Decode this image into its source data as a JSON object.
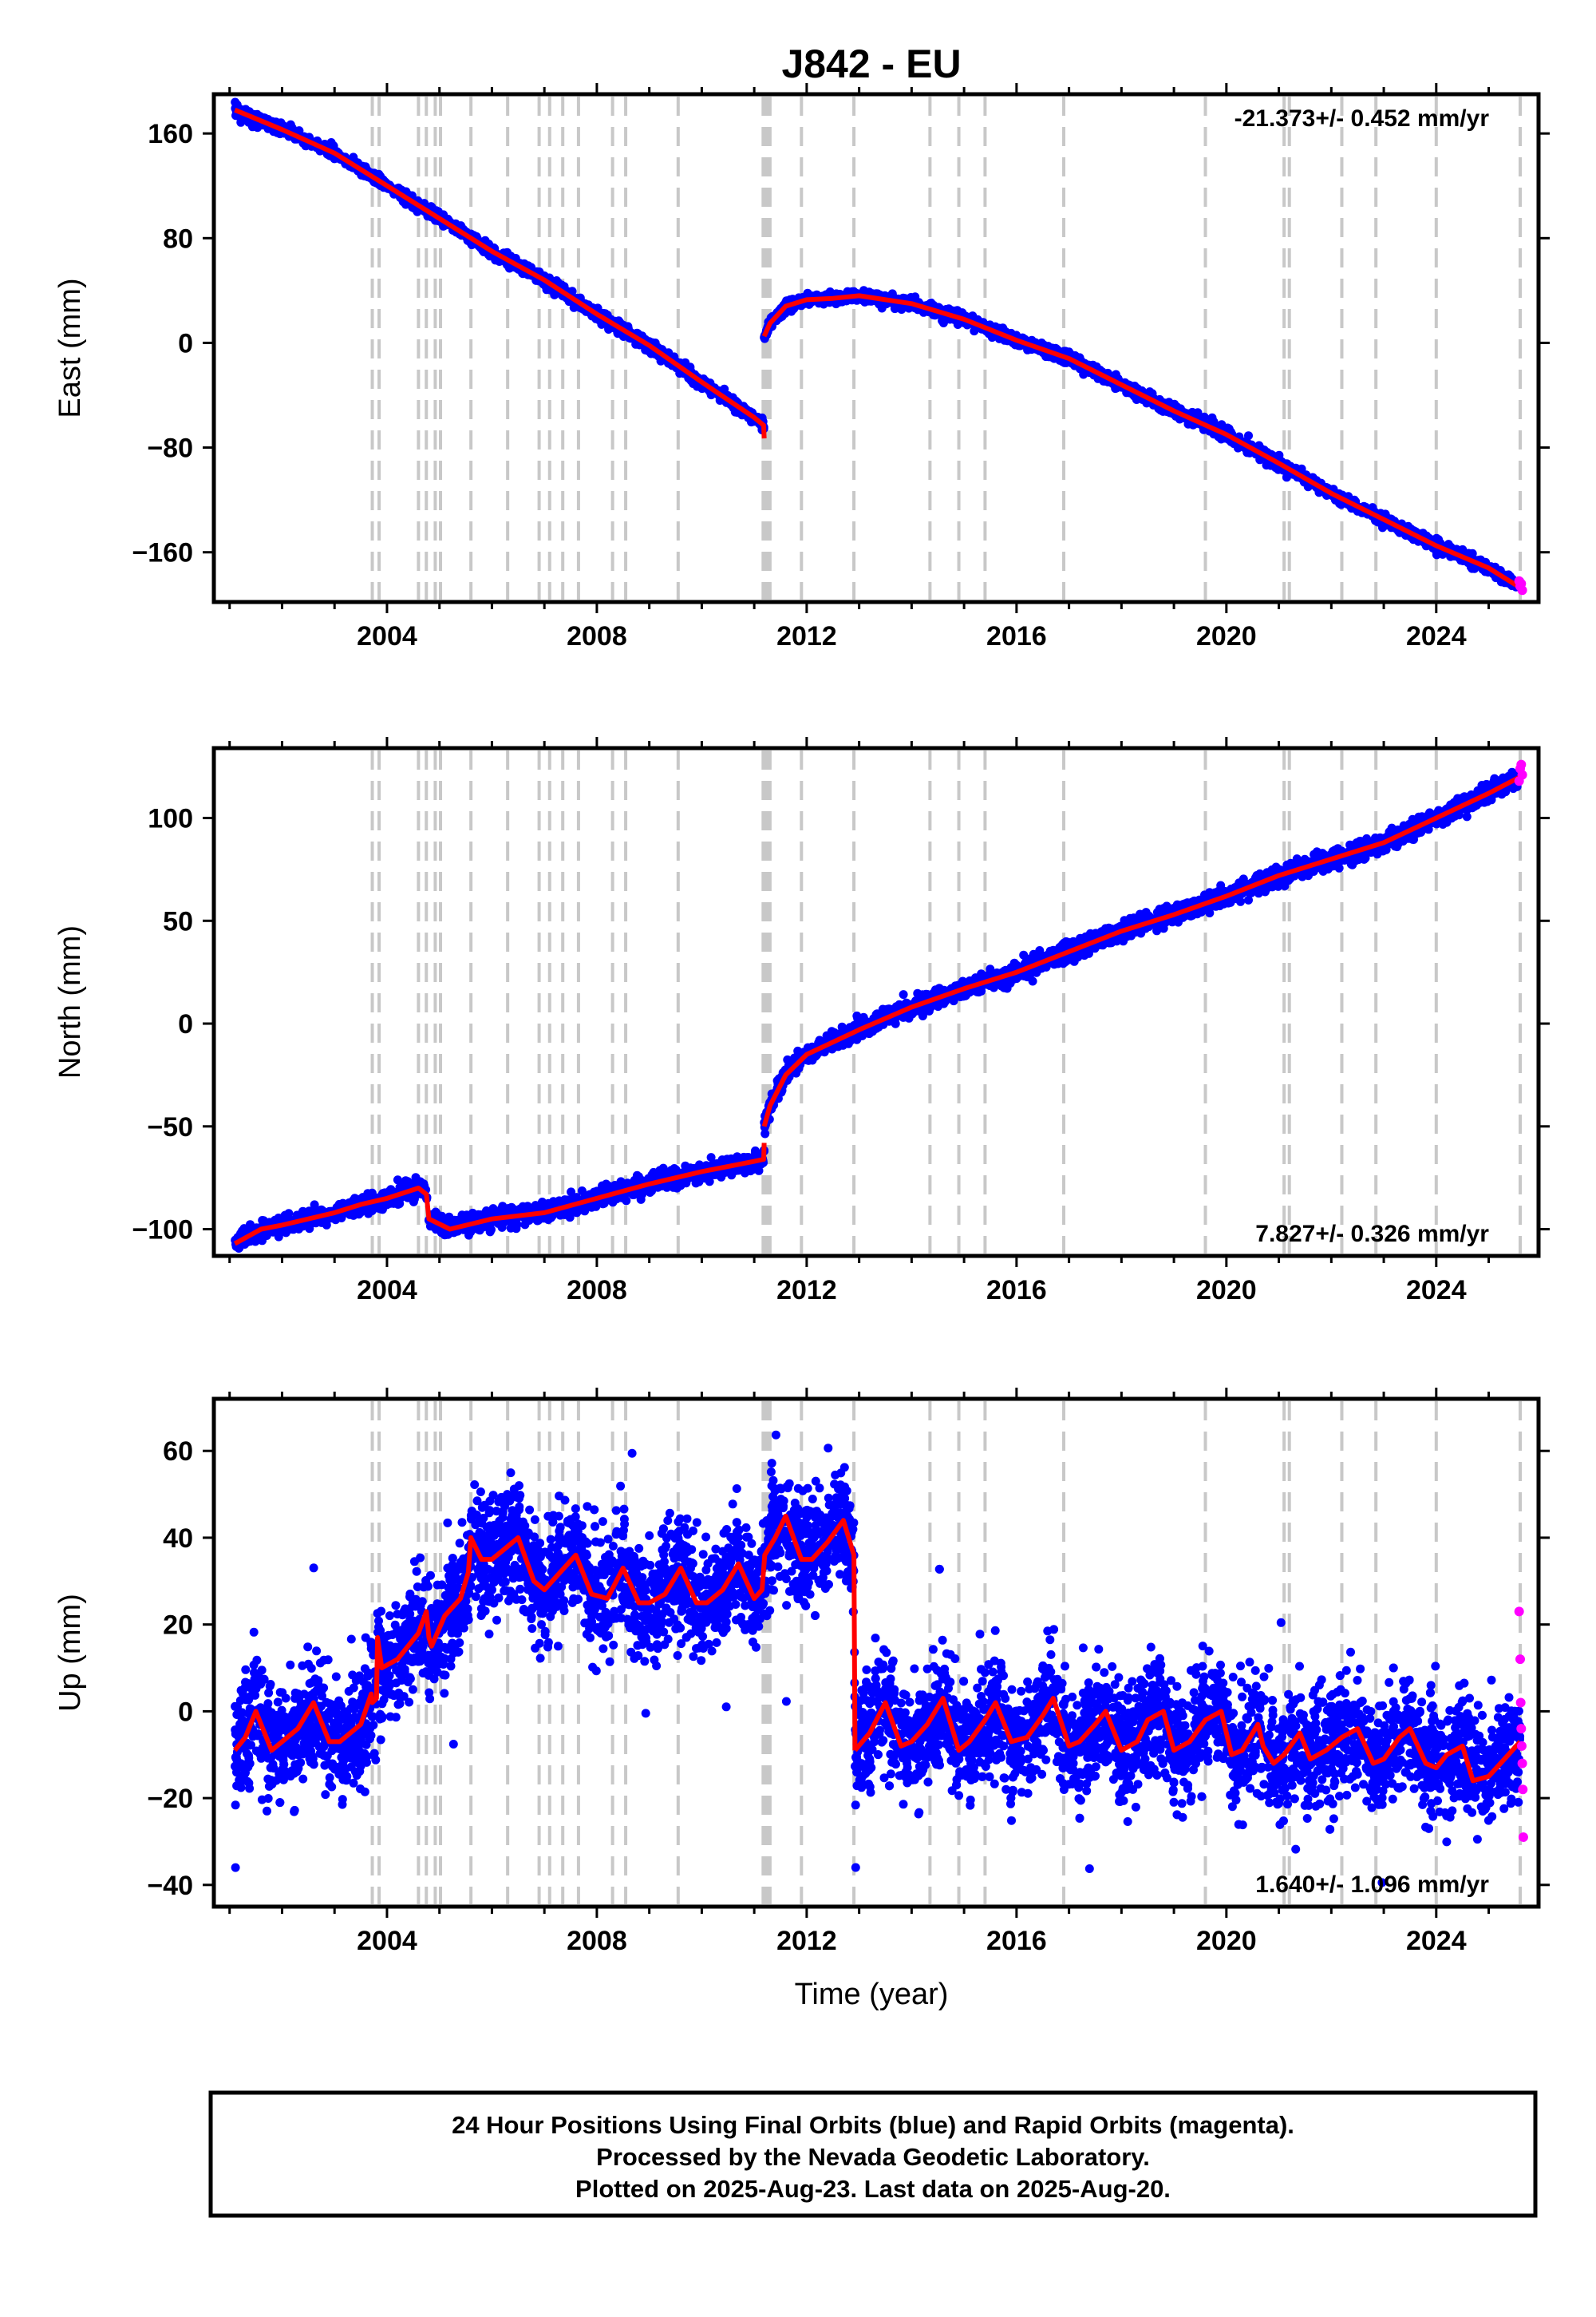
{
  "colors": {
    "final_orbits": "#0000ff",
    "rapid_orbits": "#ff00ff",
    "model_line": "#ff0000",
    "event_lines": "#c8c8c8",
    "frame": "#000000"
  },
  "chart_data": [
    {
      "type": "scatter",
      "panel": "east",
      "title": "J842 - EU",
      "ylabel": "East (mm)",
      "xlabel": "",
      "xlim": [
        2000.7,
        2025.95
      ],
      "ylim": [
        -198,
        190
      ],
      "yticks": [
        160,
        80,
        0,
        -80,
        -160
      ],
      "ytick_labels": [
        "160",
        "80",
        "0",
        "−80",
        "−160"
      ],
      "xticks": [
        2004,
        2008,
        2012,
        2016,
        2020,
        2024
      ],
      "rate_label": "-21.373+/- 0.452 mm/yr",
      "rate_position": "top-right",
      "series": [
        {
          "role": "model",
          "segments": [
            [
              [
                2001.1,
                178
              ],
              [
                2002.0,
                163
              ],
              [
                2003.0,
                145
              ],
              [
                2004.0,
                120
              ],
              [
                2005.0,
                95
              ],
              [
                2006.0,
                70
              ],
              [
                2007.0,
                48
              ],
              [
                2008.0,
                22
              ],
              [
                2009.0,
                -2
              ],
              [
                2010.0,
                -30
              ],
              [
                2011.0,
                -57
              ],
              [
                2011.18,
                -63
              ],
              [
                2011.19,
                -73
              ]
            ],
            [
              [
                2011.19,
                5
              ],
              [
                2011.3,
                15
              ],
              [
                2011.6,
                28
              ],
              [
                2012.0,
                33
              ],
              [
                2012.5,
                34
              ],
              [
                2013.0,
                36
              ],
              [
                2014.0,
                30
              ],
              [
                2015.0,
                18
              ],
              [
                2016.0,
                2
              ],
              [
                2017.0,
                -12
              ],
              [
                2018.0,
                -32
              ],
              [
                2019.0,
                -52
              ],
              [
                2020.0,
                -70
              ],
              [
                2021.0,
                -92
              ],
              [
                2022.0,
                -115
              ],
              [
                2023.0,
                -135
              ],
              [
                2024.0,
                -155
              ],
              [
                2025.0,
                -172
              ],
              [
                2025.6,
                -187
              ]
            ]
          ]
        },
        {
          "role": "rapid",
          "points": [
            [
              2025.58,
              -182
            ],
            [
              2025.6,
              -186
            ],
            [
              2025.62,
              -184
            ],
            [
              2025.64,
              -189
            ]
          ]
        }
      ]
    },
    {
      "type": "scatter",
      "panel": "north",
      "title": "",
      "ylabel": "North (mm)",
      "xlabel": "",
      "xlim": [
        2000.7,
        2025.95
      ],
      "ylim": [
        -113,
        134
      ],
      "yticks": [
        100,
        50,
        0,
        -50,
        -100
      ],
      "ytick_labels": [
        "100",
        "50",
        "0",
        "−50",
        "−100"
      ],
      "xticks": [
        2004,
        2008,
        2012,
        2016,
        2020,
        2024
      ],
      "rate_label": "7.827+/- 0.326 mm/yr",
      "rate_position": "bottom-right",
      "series": [
        {
          "role": "model",
          "segments": [
            [
              [
                2001.1,
                -107
              ],
              [
                2001.6,
                -100
              ],
              [
                2002.0,
                -98
              ],
              [
                2003.0,
                -92
              ],
              [
                2003.5,
                -88
              ],
              [
                2004.0,
                -85
              ],
              [
                2004.6,
                -80
              ],
              [
                2004.75,
                -83
              ],
              [
                2004.8,
                -95
              ],
              [
                2005.2,
                -100
              ],
              [
                2006.0,
                -95
              ],
              [
                2007.0,
                -92
              ],
              [
                2008.0,
                -85
              ],
              [
                2009.0,
                -78
              ],
              [
                2010.0,
                -72
              ],
              [
                2011.0,
                -67
              ],
              [
                2011.18,
                -66
              ],
              [
                2011.19,
                -58
              ]
            ],
            [
              [
                2011.19,
                -50
              ],
              [
                2011.3,
                -40
              ],
              [
                2011.6,
                -25
              ],
              [
                2012.0,
                -15
              ],
              [
                2013.0,
                -3
              ],
              [
                2014.0,
                8
              ],
              [
                2015.0,
                17
              ],
              [
                2016.0,
                25
              ],
              [
                2017.0,
                35
              ],
              [
                2018.0,
                45
              ],
              [
                2019.0,
                53
              ],
              [
                2020.0,
                62
              ],
              [
                2021.0,
                72
              ],
              [
                2022.0,
                80
              ],
              [
                2023.0,
                88
              ],
              [
                2024.0,
                100
              ],
              [
                2025.0,
                112
              ],
              [
                2025.6,
                120
              ]
            ]
          ]
        },
        {
          "role": "rapid",
          "points": [
            [
              2025.58,
              118
            ],
            [
              2025.6,
              124
            ],
            [
              2025.62,
              126
            ],
            [
              2025.64,
              121
            ]
          ]
        }
      ]
    },
    {
      "type": "scatter",
      "panel": "up",
      "title": "",
      "ylabel": "Up (mm)",
      "xlabel": "Time (year)",
      "xlim": [
        2000.7,
        2025.95
      ],
      "ylim": [
        -45,
        72
      ],
      "yticks": [
        60,
        40,
        20,
        0,
        -20,
        -40
      ],
      "ytick_labels": [
        "60",
        "40",
        "20",
        "0",
        "−20",
        "−40"
      ],
      "xticks": [
        2004,
        2008,
        2012,
        2016,
        2020,
        2024
      ],
      "rate_label": "1.640+/- 1.096 mm/yr",
      "rate_position": "bottom-right",
      "series": [
        {
          "role": "model",
          "segments": [
            [
              [
                2001.1,
                -9
              ],
              [
                2001.3,
                -6
              ],
              [
                2001.5,
                0
              ],
              [
                2001.8,
                -9
              ],
              [
                2002.0,
                -7
              ],
              [
                2002.3,
                -4
              ],
              [
                2002.6,
                2
              ],
              [
                2002.9,
                -7
              ],
              [
                2003.1,
                -7
              ],
              [
                2003.5,
                -3
              ],
              [
                2003.7,
                4
              ],
              [
                2003.72,
                2
              ],
              [
                2003.8,
                3
              ],
              [
                2003.82,
                17
              ],
              [
                2003.9,
                10
              ],
              [
                2004.2,
                12
              ],
              [
                2004.6,
                18
              ],
              [
                2004.75,
                23
              ],
              [
                2004.8,
                17
              ],
              [
                2004.85,
                15
              ],
              [
                2005.1,
                22
              ],
              [
                2005.4,
                26
              ],
              [
                2005.55,
                32
              ],
              [
                2005.6,
                40
              ],
              [
                2005.8,
                35
              ],
              [
                2006.0,
                35
              ],
              [
                2006.2,
                37
              ],
              [
                2006.5,
                40
              ],
              [
                2006.8,
                30
              ],
              [
                2007.0,
                28
              ],
              [
                2007.3,
                32
              ],
              [
                2007.6,
                36
              ],
              [
                2007.9,
                27
              ],
              [
                2008.2,
                26
              ],
              [
                2008.5,
                33
              ],
              [
                2008.8,
                25
              ],
              [
                2009.0,
                25
              ],
              [
                2009.3,
                27
              ],
              [
                2009.6,
                33
              ],
              [
                2009.9,
                25
              ],
              [
                2010.1,
                25
              ],
              [
                2010.4,
                28
              ],
              [
                2010.7,
                34
              ],
              [
                2011.0,
                26
              ],
              [
                2011.15,
                28
              ],
              [
                2011.2,
                36
              ],
              [
                2011.4,
                40
              ],
              [
                2011.6,
                45
              ],
              [
                2011.9,
                35
              ],
              [
                2012.1,
                35
              ],
              [
                2012.4,
                39
              ],
              [
                2012.7,
                44
              ],
              [
                2012.9,
                36
              ],
              [
                2012.92,
                -9
              ]
            ],
            [
              [
                2012.92,
                -9
              ],
              [
                2013.2,
                -5
              ],
              [
                2013.5,
                2
              ],
              [
                2013.8,
                -8
              ],
              [
                2014.0,
                -7
              ],
              [
                2014.3,
                -3
              ],
              [
                2014.6,
                3
              ],
              [
                2014.9,
                -9
              ],
              [
                2015.1,
                -7
              ],
              [
                2015.4,
                -2
              ],
              [
                2015.6,
                2
              ],
              [
                2015.9,
                -7
              ],
              [
                2016.2,
                -6
              ],
              [
                2016.5,
                -1
              ],
              [
                2016.7,
                3
              ],
              [
                2017.0,
                -8
              ],
              [
                2017.2,
                -7
              ],
              [
                2017.5,
                -3
              ],
              [
                2017.7,
                0
              ],
              [
                2018.0,
                -9
              ],
              [
                2018.3,
                -7
              ],
              [
                2018.5,
                -2
              ],
              [
                2018.8,
                0
              ],
              [
                2019.0,
                -9
              ],
              [
                2019.3,
                -7
              ],
              [
                2019.6,
                -2
              ],
              [
                2019.9,
                0
              ],
              [
                2020.1,
                -10
              ],
              [
                2020.3,
                -9
              ],
              [
                2020.6,
                -3
              ],
              [
                2020.7,
                -8
              ],
              [
                2020.9,
                -12
              ],
              [
                2021.1,
                -10
              ],
              [
                2021.4,
                -5
              ],
              [
                2021.6,
                -11
              ],
              [
                2021.9,
                -9
              ],
              [
                2022.2,
                -6
              ],
              [
                2022.5,
                -4
              ],
              [
                2022.8,
                -12
              ],
              [
                2023.0,
                -11
              ],
              [
                2023.3,
                -6
              ],
              [
                2023.5,
                -4
              ],
              [
                2023.8,
                -12
              ],
              [
                2024.0,
                -13
              ],
              [
                2024.2,
                -10
              ],
              [
                2024.5,
                -8
              ],
              [
                2024.7,
                -16
              ],
              [
                2025.0,
                -15
              ],
              [
                2025.3,
                -11
              ],
              [
                2025.6,
                -7
              ]
            ]
          ]
        },
        {
          "role": "rapid",
          "points": [
            [
              2025.58,
              23
            ],
            [
              2025.6,
              12
            ],
            [
              2025.61,
              2
            ],
            [
              2025.62,
              -4
            ],
            [
              2025.63,
              -8
            ],
            [
              2025.64,
              -12
            ],
            [
              2025.65,
              -18
            ],
            [
              2025.66,
              -29
            ]
          ]
        }
      ]
    }
  ],
  "event_lines": [
    2003.72,
    2003.85,
    2004.6,
    2004.75,
    2004.92,
    2005.02,
    2005.6,
    2006.3,
    2006.9,
    2007.1,
    2007.35,
    2007.65,
    2008.3,
    2008.55,
    2009.55,
    2011.17,
    2011.2,
    2011.23,
    2011.26,
    2011.3,
    2011.9,
    2012.9,
    2014.35,
    2014.9,
    2015.4,
    2016.9,
    2019.6,
    2021.1,
    2021.2,
    2022.2,
    2022.85,
    2024.0,
    2025.6
  ],
  "footer": {
    "line1": "24 Hour Positions Using Final Orbits (blue) and Rapid Orbits (magenta).",
    "line2": "Processed by the Nevada Geodetic Laboratory.",
    "line3": "Plotted on 2025-Aug-23. Last data on 2025-Aug-20."
  }
}
